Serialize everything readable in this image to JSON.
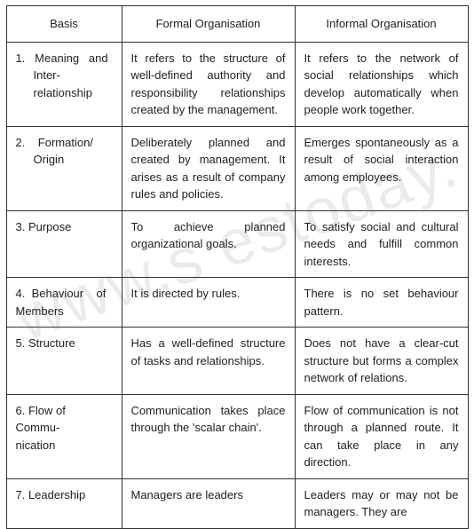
{
  "watermark": "www.s      estoday.",
  "table": {
    "headers": {
      "basis": "Basis",
      "formal": "Formal Organisation",
      "informal": "Informal Organisation"
    },
    "rows": [
      {
        "basis_html": "1.&nbsp;&nbsp;&nbsp;Meaning&nbsp;&nbsp;&nbsp;and<br><span class='basis-indent'>Inter-</span><span class='basis-indent'>relationship</span>",
        "formal": "It refers to the structure of well-defined authority and responsibility relationships created by the management.",
        "informal": "It refers to the network of social relationships which develop automatically when people work together."
      },
      {
        "basis_html": "2.&nbsp;&nbsp;&nbsp;&nbsp;Formation/<br><span class='basis-indent'>Origin</span>",
        "formal": "Deliberately planned and created by management. It arises as a result of company rules and policies.",
        "informal": "Emerges spontaneously as a result of social interaction among employees."
      },
      {
        "basis_html": "3.&nbsp;Purpose",
        "formal": "To achieve planned organizational goals.",
        "informal": "To satisfy social and cultural needs and fulfill common interests."
      },
      {
        "basis_html": "4.&nbsp;&nbsp;Behaviour&nbsp;&nbsp;&nbsp;&nbsp;of<br>Members",
        "formal": "It is directed by rules.",
        "informal": "There is no set behaviour pattern."
      },
      {
        "basis_html": "5.&nbsp;Structure",
        "formal": "Has a well-defined structure of tasks and relationships.",
        "informal": "Does not have a clear-cut structure but forms a complex network of relations."
      },
      {
        "basis_html": "6.&nbsp;Flow of Commu-<br>nication",
        "formal": "Communication takes place through the 'scalar chain'.",
        "informal": "Flow of communication is not through a planned route. It can take place in any direction."
      },
      {
        "basis_html": "7.&nbsp;Leadership",
        "formal": "Managers are leaders",
        "informal": "Leaders may or may not be managers. They are"
      }
    ]
  }
}
